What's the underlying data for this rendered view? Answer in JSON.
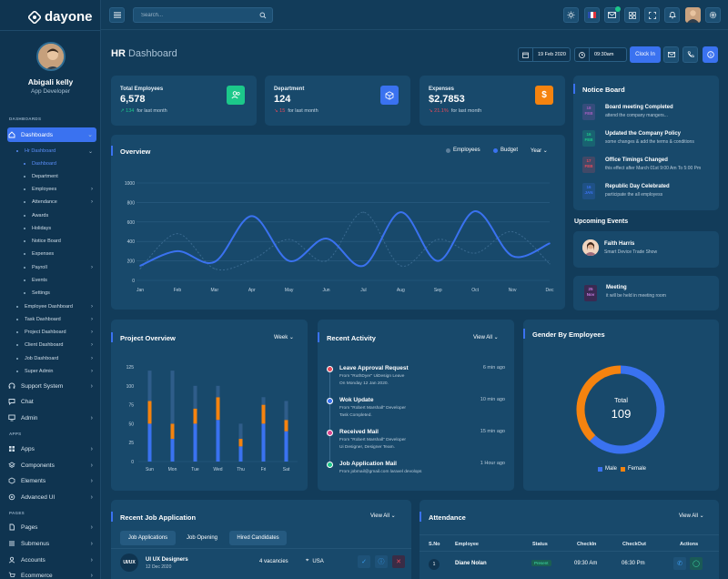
{
  "app": {
    "brand": "dayone"
  },
  "user": {
    "name": "Abigali kelly",
    "role": "App Developer"
  },
  "sidebar": {
    "section_dashboards": "DASHBOARDS",
    "section_apps": "APPS",
    "section_pages": "PAGES",
    "dashboards": "Dashboards",
    "hr_dashboard": "Hr Dashboard",
    "hr_items": [
      "Dashboard",
      "Department",
      "Employees",
      "Attendance",
      "Awards",
      "Holidays",
      "Notice Board",
      "Expenses",
      "Payroll",
      "Events",
      "Settings"
    ],
    "dash_items": [
      "Employee Dashboard",
      "Task Dashboard",
      "Project Dashboard",
      "Client Dashboard",
      "Job Dashboard",
      "Super Admin"
    ],
    "support": "Support System",
    "chat": "Chat",
    "admin": "Admin",
    "apps": "Apps",
    "components": "Components",
    "elements": "Elements",
    "advanced_ui": "Advanced UI",
    "pages": "Pages",
    "submenus": "Submenus",
    "accounts": "Accounts",
    "ecommerce": "Ecommerce"
  },
  "topbar": {
    "search_placeholder": "Search...",
    "notif_badge": ""
  },
  "header": {
    "title_bold": "HR",
    "title_rest": "Dashboard",
    "date": "19 Feb 2020",
    "time": "09:30am",
    "clock_in": "Clock In"
  },
  "stats": [
    {
      "label": "Total Employees",
      "value": "6,578",
      "trend": "134",
      "trend_text": "for last month",
      "trend_dir": "up",
      "color": "#1cc88a"
    },
    {
      "label": "Department",
      "value": "124",
      "trend": "15",
      "trend_text": "for last month",
      "trend_dir": "down",
      "color": "#3a72f0"
    },
    {
      "label": "Expenses",
      "value": "$2,7853",
      "trend": "21.1%",
      "trend_text": "for last month",
      "trend_dir": "down",
      "color": "#f5830f"
    }
  ],
  "overview": {
    "title": "Overview",
    "legend_employees": "Employees",
    "legend_budget": "Budget",
    "period": "Year"
  },
  "notice": {
    "title": "Notice Board",
    "items": [
      {
        "day": "18",
        "mon": "FEB",
        "title": "Board meeting Completed",
        "desc": "attend the company mangers...",
        "color": "#a45fbf"
      },
      {
        "day": "16",
        "mon": "FEB",
        "title": "Updated the Company Policy",
        "desc": "some changes & add the terms & conditions",
        "color": "#1cc88a"
      },
      {
        "day": "17",
        "mon": "FEB",
        "title": "Office Timings Changed",
        "desc": "this effect after March 01st 9:00 Am To 5:00 Pm",
        "color": "#e74a5a"
      },
      {
        "day": "16",
        "mon": "JAN",
        "title": "Republic Day Celebrated",
        "desc": "participate the all employess",
        "color": "#3a72f0"
      }
    ]
  },
  "events": {
    "title": "Upcoming Events",
    "e1_name": "Faith Harris",
    "e1_desc": "Smart Device Trade Show",
    "e2_day": "25",
    "e2_mon": "Nov",
    "e2_name": "Meeting",
    "e2_desc": "it will be held in meeting room"
  },
  "project": {
    "title": "Project Overview",
    "period": "Week"
  },
  "activity": {
    "title": "Recent Activity",
    "view": "View All",
    "items": [
      {
        "title": "Leave Approval Request",
        "l1": "From \"RuthDyer\" UiDesign Leave",
        "l2": "On Monday 12 Jan 2020.",
        "time": "6 min ago",
        "color": "#e74a5a"
      },
      {
        "title": "Wok Update",
        "l1": "From \"Robert Marshall\" Developer",
        "l2": "Task Completed.",
        "time": "10 min ago",
        "color": "#3a72f0"
      },
      {
        "title": "Received Mail",
        "l1": "From \"Robert Marshall\" Developer",
        "l2": "Ui Designer, Designer Team.",
        "time": "15 min ago",
        "color": "#d9458f"
      },
      {
        "title": "Job Application Mail",
        "l1": "From jobmail@gmail.com laravel devolops",
        "l2": "",
        "time": "1 Hour ago",
        "color": "#1cc88a"
      }
    ]
  },
  "gender": {
    "title": "Gender By Employees",
    "total_label": "Total",
    "total": "109",
    "male": "Male",
    "female": "Female"
  },
  "jobs": {
    "title": "Recent Job Application",
    "view": "View All",
    "tabs": [
      "Job Applications",
      "Job Opening",
      "Hired Candidates"
    ],
    "row": {
      "code": "UI/UX",
      "name": "UI UX Designers",
      "date": "12 Dec 2020",
      "vacancies": "4 vacancies",
      "location": "USA"
    }
  },
  "attendance": {
    "title": "Attendance",
    "view": "View All",
    "headers": [
      "S.No",
      "Employee",
      "Status",
      "CheckIn",
      "CheckOut",
      "Actions"
    ],
    "row": {
      "sno": "1",
      "name": "Diane Nolan",
      "status": "Present",
      "in": "09:30 Am",
      "out": "06:30 Pm"
    }
  },
  "chart_data": [
    {
      "type": "line",
      "title": "Overview",
      "categories": [
        "Jan",
        "Feb",
        "Mar",
        "Apr",
        "May",
        "Jun",
        "Jul",
        "Aug",
        "Sep",
        "Oct",
        "Nov",
        "Dec"
      ],
      "series": [
        {
          "name": "Budget",
          "values": [
            150,
            300,
            190,
            660,
            200,
            430,
            150,
            700,
            200,
            710,
            250,
            380
          ]
        },
        {
          "name": "Employees",
          "values": [
            120,
            480,
            120,
            210,
            420,
            200,
            700,
            150,
            420,
            280,
            500,
            170
          ]
        }
      ],
      "y_ticks": [
        "0",
        "200",
        "400",
        "600",
        "800",
        "1000"
      ],
      "ylim": [
        0,
        1000
      ],
      "grid": true
    },
    {
      "type": "bar",
      "title": "Project Overview",
      "categories": [
        "Sun",
        "Mon",
        "Tue",
        "Wed",
        "Thu",
        "Fri",
        "Sat"
      ],
      "series": [
        {
          "name": "Blue",
          "values": [
            50,
            30,
            50,
            55,
            20,
            50,
            40
          ]
        },
        {
          "name": "Orange",
          "values": [
            30,
            20,
            20,
            30,
            10,
            25,
            15
          ]
        },
        {
          "name": "Faint",
          "values": [
            40,
            70,
            30,
            15,
            20,
            10,
            25
          ]
        }
      ],
      "y_ticks": [
        "0",
        "25",
        "50",
        "75",
        "100",
        "125"
      ],
      "ylim": [
        0,
        125
      ]
    },
    {
      "type": "pie",
      "title": "Gender By Employees",
      "series": [
        {
          "name": "Male",
          "values": [
            68
          ]
        },
        {
          "name": "Female",
          "values": [
            41
          ]
        }
      ],
      "colors": [
        "#3a72f0",
        "#f5830f"
      ]
    }
  ],
  "colors": {
    "accent": "#3a72f0",
    "bg": "#123c5a",
    "card": "#18496b",
    "orange": "#f5830f",
    "green": "#1cc88a"
  }
}
